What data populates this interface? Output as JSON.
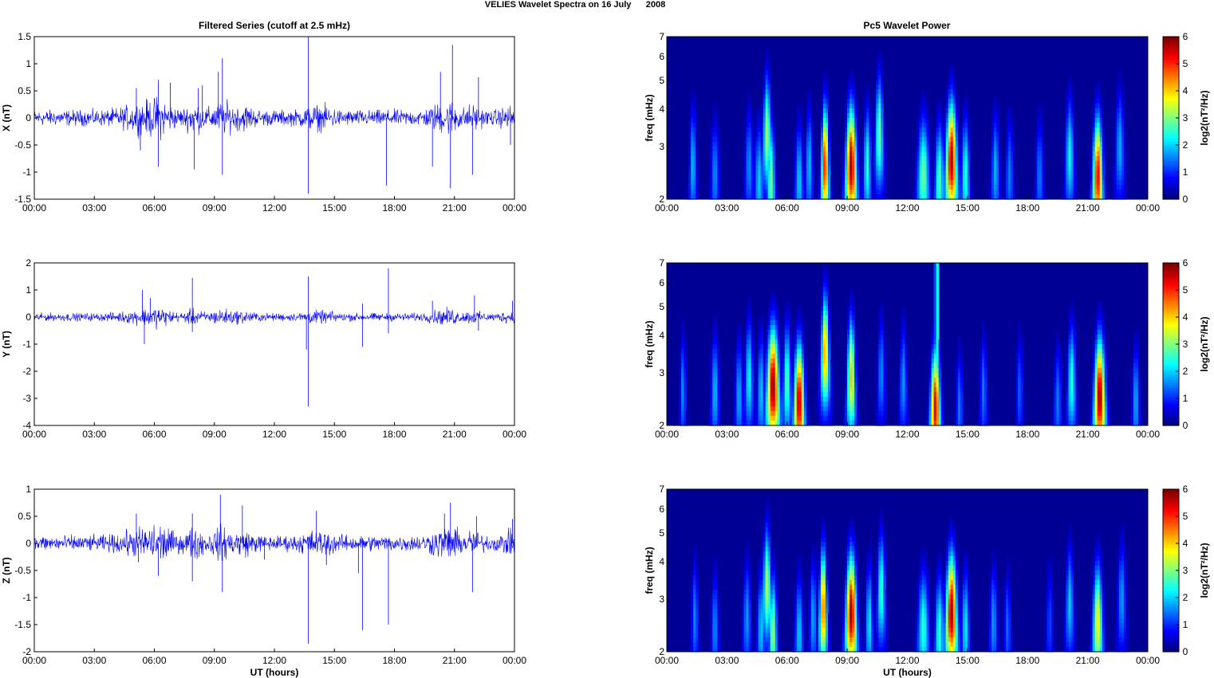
{
  "figure": {
    "title": "VELIES Wavelet Spectra on 16 July      2008",
    "left_column_title": "Filtered Series (cutoff at 2.5 mHz)",
    "right_column_title": "Pc5 Wavelet Power",
    "xlabel": "UT (hours)"
  },
  "chart_data": [
    {
      "type": "line",
      "id": "x-series",
      "title": "Filtered Series (cutoff at 2.5 mHz)",
      "ylabel": "X (nT)",
      "xlabel": "",
      "xlim": [
        0,
        24
      ],
      "ylim": [
        -1.5,
        1.5
      ],
      "x_ticks": [
        "00:00",
        "03:00",
        "06:00",
        "09:00",
        "12:00",
        "15:00",
        "18:00",
        "21:00",
        "00:00"
      ],
      "y_ticks": [
        "1.5",
        "1",
        "0.5",
        "0",
        "-0.5",
        "-1",
        "-1.5"
      ],
      "color": "#0000ff",
      "baseline_amplitude": 0.12,
      "spikes": [
        {
          "t": 5.1,
          "v": 0.55
        },
        {
          "t": 5.3,
          "v": -0.6
        },
        {
          "t": 6.2,
          "v": 0.7
        },
        {
          "t": 6.2,
          "v": -0.9
        },
        {
          "t": 6.8,
          "v": 0.65
        },
        {
          "t": 8.0,
          "v": -0.95
        },
        {
          "t": 8.2,
          "v": 0.55
        },
        {
          "t": 8.4,
          "v": 0.6
        },
        {
          "t": 9.2,
          "v": 0.85
        },
        {
          "t": 9.4,
          "v": 1.1
        },
        {
          "t": 9.4,
          "v": -1.05
        },
        {
          "t": 13.7,
          "v": 1.5
        },
        {
          "t": 13.7,
          "v": -1.4
        },
        {
          "t": 17.6,
          "v": -1.25
        },
        {
          "t": 19.9,
          "v": -0.9
        },
        {
          "t": 20.3,
          "v": 0.85
        },
        {
          "t": 20.8,
          "v": -1.3
        },
        {
          "t": 20.9,
          "v": 1.35
        },
        {
          "t": 21.9,
          "v": -1.05
        },
        {
          "t": 22.2,
          "v": 0.75
        },
        {
          "t": 23.8,
          "v": -0.5
        }
      ]
    },
    {
      "type": "heatmap",
      "id": "x-power",
      "title": "Pc5 Wavelet Power",
      "ylabel": "freq (mHz)",
      "xlabel": "",
      "xlim": [
        0,
        24
      ],
      "ylim": [
        2,
        7
      ],
      "y_scale": "log",
      "x_ticks": [
        "00:00",
        "03:00",
        "06:00",
        "09:00",
        "12:00",
        "15:00",
        "18:00",
        "21:00",
        "00:00"
      ],
      "y_ticks": [
        2,
        3,
        4,
        5,
        6,
        7
      ],
      "colorbar": {
        "label": "log2(nT²/Hz)",
        "range": [
          0,
          6
        ],
        "ticks": [
          0,
          1,
          2,
          3,
          4,
          5,
          6
        ],
        "colormap": "jet"
      },
      "blobs": [
        {
          "t": 1.3,
          "amp": 1.9,
          "fc": 2.6,
          "w": 0.12
        },
        {
          "t": 2.4,
          "amp": 1.6,
          "fc": 2.4,
          "w": 0.14
        },
        {
          "t": 4.1,
          "amp": 1.6,
          "fc": 2.6,
          "w": 0.14
        },
        {
          "t": 4.6,
          "amp": 2.0,
          "fc": 2.3,
          "w": 0.15
        },
        {
          "t": 5.0,
          "amp": 3.2,
          "fc": 3.3,
          "w": 0.13
        },
        {
          "t": 5.2,
          "amp": 3.0,
          "fc": 2.3,
          "w": 0.13
        },
        {
          "t": 6.6,
          "amp": 2.0,
          "fc": 2.3,
          "w": 0.14
        },
        {
          "t": 7.1,
          "amp": 1.9,
          "fc": 2.6,
          "w": 0.12
        },
        {
          "t": 7.9,
          "amp": 5.2,
          "fc": 2.6,
          "w": 0.12
        },
        {
          "t": 9.2,
          "amp": 5.9,
          "fc": 2.6,
          "w": 0.17
        },
        {
          "t": 10.0,
          "amp": 2.5,
          "fc": 2.6,
          "w": 0.12
        },
        {
          "t": 10.6,
          "amp": 3.0,
          "fc": 3.3,
          "w": 0.13
        },
        {
          "t": 12.8,
          "amp": 2.9,
          "fc": 2.4,
          "w": 0.2
        },
        {
          "t": 13.6,
          "amp": 2.8,
          "fc": 2.3,
          "w": 0.15
        },
        {
          "t": 14.2,
          "amp": 5.8,
          "fc": 2.7,
          "w": 0.18
        },
        {
          "t": 14.9,
          "amp": 2.5,
          "fc": 2.4,
          "w": 0.14
        },
        {
          "t": 16.4,
          "amp": 1.8,
          "fc": 2.5,
          "w": 0.14
        },
        {
          "t": 17.1,
          "amp": 1.5,
          "fc": 2.4,
          "w": 0.14
        },
        {
          "t": 18.6,
          "amp": 1.5,
          "fc": 2.4,
          "w": 0.14
        },
        {
          "t": 20.1,
          "amp": 2.3,
          "fc": 2.8,
          "w": 0.14
        },
        {
          "t": 21.5,
          "amp": 5.4,
          "fc": 2.4,
          "w": 0.16
        },
        {
          "t": 22.6,
          "amp": 1.8,
          "fc": 3.0,
          "w": 0.15
        }
      ]
    },
    {
      "type": "line",
      "id": "y-series",
      "ylabel": "Y (nT)",
      "xlabel": "",
      "xlim": [
        0,
        24
      ],
      "ylim": [
        -4,
        2
      ],
      "x_ticks": [
        "00:00",
        "03:00",
        "06:00",
        "09:00",
        "12:00",
        "15:00",
        "18:00",
        "21:00",
        "00:00"
      ],
      "y_ticks": [
        "2",
        "1",
        "0",
        "-1",
        "-2",
        "-3",
        "-4"
      ],
      "color": "#0000ff",
      "baseline_amplitude": 0.12,
      "spikes": [
        {
          "t": 5.4,
          "v": 1.0
        },
        {
          "t": 5.5,
          "v": -1.0
        },
        {
          "t": 5.8,
          "v": 0.7
        },
        {
          "t": 7.9,
          "v": 1.45
        },
        {
          "t": 7.9,
          "v": -0.55
        },
        {
          "t": 13.7,
          "v": 1.5
        },
        {
          "t": 13.7,
          "v": -3.3
        },
        {
          "t": 13.6,
          "v": -1.2
        },
        {
          "t": 16.4,
          "v": 0.5
        },
        {
          "t": 16.4,
          "v": -1.1
        },
        {
          "t": 17.7,
          "v": 1.8
        },
        {
          "t": 17.7,
          "v": -0.6
        },
        {
          "t": 19.9,
          "v": 0.6
        },
        {
          "t": 22.0,
          "v": 0.8
        },
        {
          "t": 22.2,
          "v": -0.5
        },
        {
          "t": 23.9,
          "v": 0.6
        }
      ]
    },
    {
      "type": "heatmap",
      "id": "y-power",
      "ylabel": "freq (mHz)",
      "xlabel": "",
      "xlim": [
        0,
        24
      ],
      "ylim": [
        2,
        7
      ],
      "y_scale": "log",
      "x_ticks": [
        "00:00",
        "03:00",
        "06:00",
        "09:00",
        "12:00",
        "15:00",
        "18:00",
        "21:00",
        "00:00"
      ],
      "y_ticks": [
        2,
        3,
        4,
        5,
        6,
        7
      ],
      "colorbar": {
        "label": "log2(nT²/Hz)",
        "range": [
          0,
          6
        ],
        "ticks": [
          0,
          1,
          2,
          3,
          4,
          5,
          6
        ],
        "colormap": "jet"
      },
      "blobs": [
        {
          "t": 0.8,
          "amp": 1.6,
          "fc": 2.6,
          "w": 0.1
        },
        {
          "t": 2.4,
          "amp": 1.9,
          "fc": 2.6,
          "w": 0.13
        },
        {
          "t": 3.6,
          "amp": 1.8,
          "fc": 2.5,
          "w": 0.13
        },
        {
          "t": 4.1,
          "amp": 2.3,
          "fc": 2.9,
          "w": 0.13
        },
        {
          "t": 4.7,
          "amp": 2.0,
          "fc": 2.6,
          "w": 0.12
        },
        {
          "t": 5.3,
          "amp": 6.0,
          "fc": 2.7,
          "w": 0.2
        },
        {
          "t": 6.0,
          "amp": 2.8,
          "fc": 2.8,
          "w": 0.13
        },
        {
          "t": 6.6,
          "amp": 5.7,
          "fc": 2.4,
          "w": 0.17
        },
        {
          "t": 7.9,
          "amp": 4.3,
          "fc": 3.5,
          "w": 0.13
        },
        {
          "t": 9.2,
          "amp": 4.2,
          "fc": 2.9,
          "w": 0.13
        },
        {
          "t": 10.7,
          "amp": 1.6,
          "fc": 3.0,
          "w": 0.12
        },
        {
          "t": 11.8,
          "amp": 1.7,
          "fc": 2.8,
          "w": 0.12
        },
        {
          "t": 13.4,
          "amp": 5.5,
          "fc": 2.3,
          "w": 0.16
        },
        {
          "t": 14.6,
          "amp": 1.5,
          "fc": 2.3,
          "w": 0.12
        },
        {
          "t": 15.8,
          "amp": 1.5,
          "fc": 2.6,
          "w": 0.12
        },
        {
          "t": 17.6,
          "amp": 1.3,
          "fc": 2.6,
          "w": 0.12
        },
        {
          "t": 19.5,
          "amp": 1.5,
          "fc": 2.4,
          "w": 0.13
        },
        {
          "t": 20.2,
          "amp": 2.5,
          "fc": 2.8,
          "w": 0.14
        },
        {
          "t": 21.6,
          "amp": 5.9,
          "fc": 2.5,
          "w": 0.18
        },
        {
          "t": 23.4,
          "amp": 1.8,
          "fc": 2.4,
          "w": 0.12
        }
      ],
      "streaks": [
        {
          "t": 13.45,
          "amp": 4.5
        }
      ]
    },
    {
      "type": "line",
      "id": "z-series",
      "ylabel": "Z (nT)",
      "xlabel": "UT (hours)",
      "xlim": [
        0,
        24
      ],
      "ylim": [
        -2,
        1
      ],
      "x_ticks": [
        "00:00",
        "03:00",
        "06:00",
        "09:00",
        "12:00",
        "15:00",
        "18:00",
        "21:00",
        "00:00"
      ],
      "y_ticks": [
        "1",
        "0.5",
        "0",
        "-0.5",
        "-1",
        "-1.5",
        "-2"
      ],
      "color": "#0000ff",
      "baseline_amplitude": 0.12,
      "spikes": [
        {
          "t": 5.1,
          "v": 0.55
        },
        {
          "t": 5.2,
          "v": -0.35
        },
        {
          "t": 6.2,
          "v": -0.6
        },
        {
          "t": 7.9,
          "v": 0.55
        },
        {
          "t": 7.9,
          "v": -0.7
        },
        {
          "t": 9.3,
          "v": 0.9
        },
        {
          "t": 9.4,
          "v": -0.9
        },
        {
          "t": 10.4,
          "v": 0.7
        },
        {
          "t": 11.5,
          "v": -0.3
        },
        {
          "t": 13.7,
          "v": -1.85
        },
        {
          "t": 14.1,
          "v": 0.6
        },
        {
          "t": 14.6,
          "v": -0.4
        },
        {
          "t": 16.2,
          "v": -0.55
        },
        {
          "t": 16.4,
          "v": -1.6
        },
        {
          "t": 17.7,
          "v": -1.5
        },
        {
          "t": 20.5,
          "v": 0.55
        },
        {
          "t": 20.8,
          "v": 0.75
        },
        {
          "t": 21.9,
          "v": -0.9
        },
        {
          "t": 22.1,
          "v": 0.5
        },
        {
          "t": 23.9,
          "v": 0.45
        }
      ]
    },
    {
      "type": "heatmap",
      "id": "z-power",
      "ylabel": "freq (mHz)",
      "xlabel": "UT (hours)",
      "xlim": [
        0,
        24
      ],
      "ylim": [
        2,
        7
      ],
      "y_scale": "log",
      "x_ticks": [
        "00:00",
        "03:00",
        "06:00",
        "09:00",
        "12:00",
        "15:00",
        "18:00",
        "21:00",
        "00:00"
      ],
      "y_ticks": [
        2,
        3,
        4,
        5,
        6,
        7
      ],
      "colorbar": {
        "label": "log2(nT²/Hz)",
        "range": [
          0,
          6
        ],
        "ticks": [
          0,
          1,
          2,
          3,
          4,
          5,
          6
        ],
        "colormap": "jet"
      },
      "blobs": [
        {
          "t": 1.4,
          "amp": 1.6,
          "fc": 2.6,
          "w": 0.11
        },
        {
          "t": 2.4,
          "amp": 1.6,
          "fc": 2.4,
          "w": 0.12
        },
        {
          "t": 4.0,
          "amp": 1.7,
          "fc": 2.6,
          "w": 0.13
        },
        {
          "t": 4.7,
          "amp": 2.0,
          "fc": 2.4,
          "w": 0.13
        },
        {
          "t": 5.0,
          "amp": 3.3,
          "fc": 3.3,
          "w": 0.13
        },
        {
          "t": 5.3,
          "amp": 3.2,
          "fc": 2.3,
          "w": 0.13
        },
        {
          "t": 6.6,
          "amp": 2.0,
          "fc": 2.3,
          "w": 0.14
        },
        {
          "t": 7.3,
          "amp": 1.8,
          "fc": 2.6,
          "w": 0.12
        },
        {
          "t": 7.8,
          "amp": 4.8,
          "fc": 2.8,
          "w": 0.12
        },
        {
          "t": 9.2,
          "amp": 5.9,
          "fc": 2.7,
          "w": 0.17
        },
        {
          "t": 10.1,
          "amp": 2.2,
          "fc": 2.5,
          "w": 0.12
        },
        {
          "t": 10.7,
          "amp": 2.6,
          "fc": 3.2,
          "w": 0.13
        },
        {
          "t": 12.8,
          "amp": 2.5,
          "fc": 2.4,
          "w": 0.19
        },
        {
          "t": 13.6,
          "amp": 2.6,
          "fc": 2.3,
          "w": 0.15
        },
        {
          "t": 14.2,
          "amp": 5.9,
          "fc": 2.7,
          "w": 0.18
        },
        {
          "t": 14.9,
          "amp": 2.2,
          "fc": 2.4,
          "w": 0.13
        },
        {
          "t": 16.3,
          "amp": 1.7,
          "fc": 2.5,
          "w": 0.13
        },
        {
          "t": 17.0,
          "amp": 1.4,
          "fc": 2.4,
          "w": 0.12
        },
        {
          "t": 19.1,
          "amp": 1.2,
          "fc": 2.5,
          "w": 0.12
        },
        {
          "t": 20.1,
          "amp": 2.0,
          "fc": 2.9,
          "w": 0.13
        },
        {
          "t": 21.5,
          "amp": 3.8,
          "fc": 2.5,
          "w": 0.16
        },
        {
          "t": 22.7,
          "amp": 1.7,
          "fc": 3.0,
          "w": 0.14
        }
      ]
    }
  ]
}
